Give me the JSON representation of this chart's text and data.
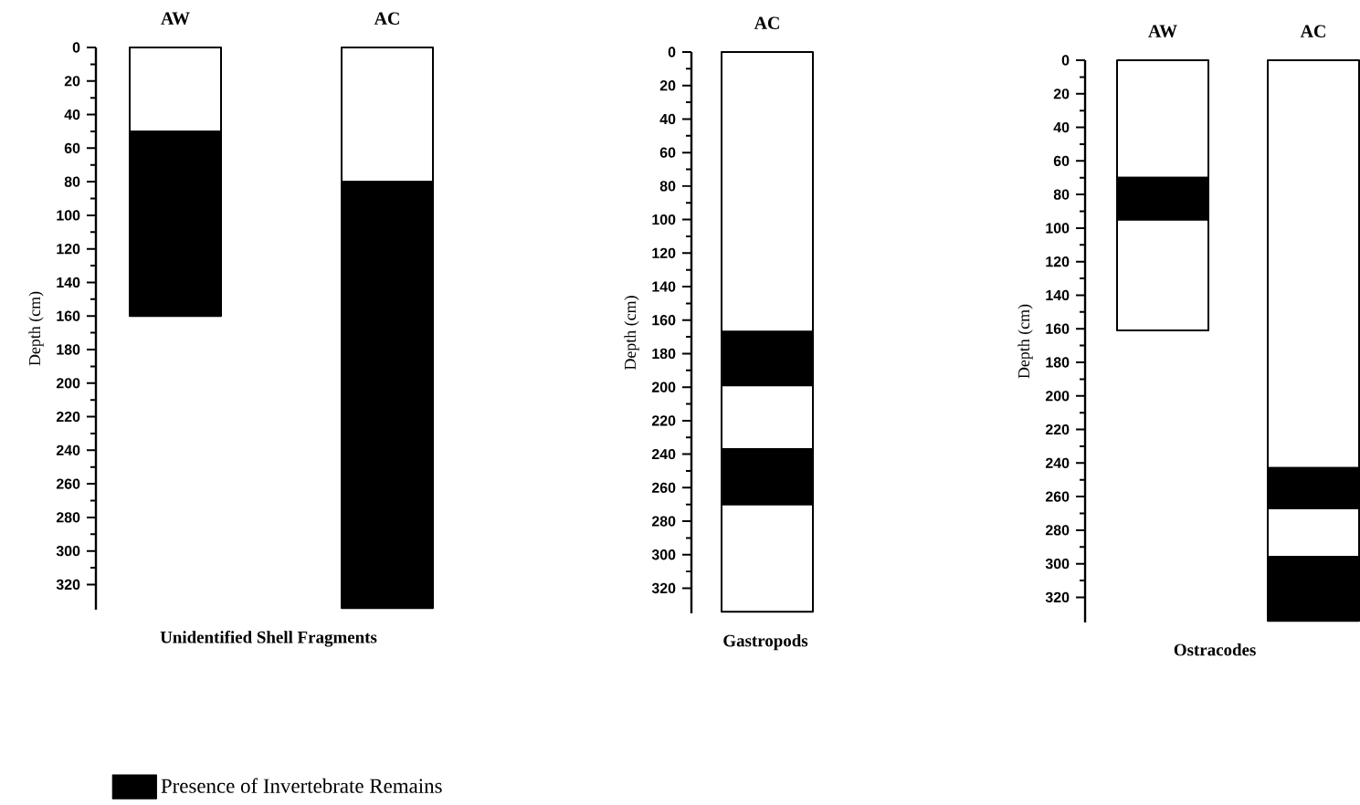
{
  "chart_data": [
    {
      "type": "bar",
      "stacked": true,
      "categories": [
        "AW",
        "AC"
      ],
      "xlabel": "Unidentified Shell Fragments",
      "ylabel": "Depth (cm)",
      "ylim": [
        335,
        0
      ],
      "yticks": [
        0,
        20,
        40,
        60,
        80,
        100,
        120,
        140,
        160,
        180,
        200,
        220,
        240,
        260,
        280,
        300,
        320
      ],
      "legend": "bottom left",
      "series": [
        {
          "color": "#ffffff",
          "values": [
            50,
            80
          ]
        },
        {
          "name": "Presence of Invertebrate Remains",
          "color": "#000000",
          "values": [
            110,
            254
          ]
        }
      ]
    },
    {
      "type": "bar",
      "stacked": true,
      "categories": [
        "AC"
      ],
      "xlabel": "Gastropods",
      "ylabel": "Depth (cm)",
      "ylim": [
        335,
        0
      ],
      "yticks": [
        0,
        20,
        40,
        60,
        80,
        100,
        120,
        140,
        160,
        180,
        200,
        220,
        240,
        260,
        280,
        300,
        320
      ],
      "series": [
        {
          "color": "#ffffff",
          "values": [
            167
          ]
        },
        {
          "color": "#000000",
          "values": [
            32
          ]
        },
        {
          "color": "#ffffff",
          "values": [
            38
          ]
        },
        {
          "color": "#000000",
          "values": [
            33
          ]
        },
        {
          "color": "#ffffff",
          "values": [
            64
          ]
        }
      ]
    },
    {
      "type": "bar",
      "stacked": true,
      "categories": [
        "AW",
        "AC"
      ],
      "xlabel": "Ostracodes",
      "ylabel": "Depth (cm)",
      "ylim": [
        335,
        0
      ],
      "yticks": [
        0,
        20,
        40,
        60,
        80,
        100,
        120,
        140,
        160,
        180,
        200,
        220,
        240,
        260,
        280,
        300,
        320
      ],
      "series": [
        {
          "color": "#ffffff",
          "values": [
            70,
            243
          ]
        },
        {
          "color": "#000000",
          "values": [
            25,
            24
          ]
        },
        {
          "color": "#ffffff",
          "values": [
            66,
            29
          ]
        },
        {
          "color": "#000000",
          "values": [
            null,
            38
          ]
        }
      ]
    }
  ]
}
